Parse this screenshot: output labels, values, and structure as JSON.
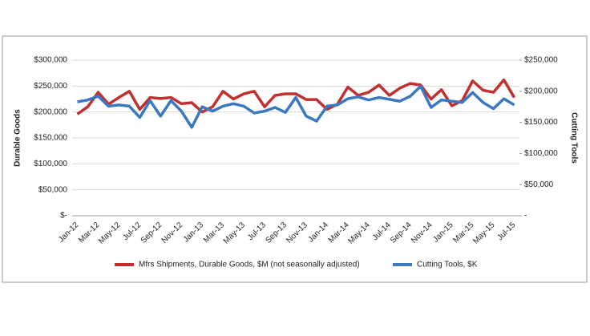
{
  "chart_data": {
    "type": "line",
    "categories": [
      "Jan-12",
      null,
      "Mar-12",
      null,
      "May-12",
      null,
      "Jul-12",
      null,
      "Sep-12",
      null,
      "Nov-12",
      null,
      "Jan-13",
      null,
      "Mar-13",
      null,
      "May-13",
      null,
      "Jul-13",
      null,
      "Sep-13",
      null,
      "Nov-13",
      null,
      "Jan-14",
      null,
      "Mar-14",
      null,
      "May-14",
      null,
      "Jul-14",
      null,
      "Sep-14",
      null,
      "Nov-14",
      null,
      "Jan-15",
      null,
      "Mar-15",
      null,
      "May-15",
      null,
      "Jul-15"
    ],
    "series": [
      {
        "name": "Mfrs Shipments, Durable Goods, $M (not seasonally adjusted)",
        "color": "#c0302e",
        "axis": "y",
        "values": [
          196000,
          210000,
          238000,
          215000,
          228000,
          240000,
          205000,
          228000,
          226000,
          228000,
          216000,
          218000,
          200000,
          210000,
          240000,
          225000,
          235000,
          240000,
          210000,
          232000,
          235000,
          235000,
          224000,
          224000,
          205000,
          215000,
          248000,
          232000,
          238000,
          252000,
          232000,
          246000,
          255000,
          252000,
          225000,
          243000,
          212000,
          222000,
          260000,
          242000,
          238000,
          262000,
          228000
        ]
      },
      {
        "name": "Cutting Tools, $K",
        "color": "#3b78c2",
        "axis": "y2",
        "values": [
          183000,
          186000,
          192000,
          176000,
          178000,
          176000,
          158000,
          185000,
          160000,
          185000,
          168000,
          142000,
          175000,
          168000,
          176000,
          180000,
          176000,
          165000,
          168000,
          174000,
          166000,
          190000,
          160000,
          152000,
          176000,
          178000,
          188000,
          191000,
          186000,
          190000,
          187000,
          184000,
          192000,
          208000,
          174000,
          186000,
          184000,
          182000,
          198000,
          182000,
          172000,
          188000,
          178000
        ]
      }
    ],
    "y_label": "Durable Goods",
    "y2_label": "Cutting Tools",
    "ylim": [
      0,
      300000
    ],
    "yticks": [
      {
        "value": 0,
        "label": "$-"
      },
      {
        "value": 50000,
        "label": "$50,000"
      },
      {
        "value": 100000,
        "label": "$100,000"
      },
      {
        "value": 150000,
        "label": "$150,000"
      },
      {
        "value": 200000,
        "label": "$200,000"
      },
      {
        "value": 250000,
        "label": "$250,000"
      },
      {
        "value": 300000,
        "label": "$300,000"
      }
    ],
    "y2lim": [
      0,
      250000
    ],
    "y2ticks": [
      {
        "value": 0,
        "label": "-"
      },
      {
        "value": 50000,
        "label": "$50,000"
      },
      {
        "value": 100000,
        "label": "$100,000"
      },
      {
        "value": 150000,
        "label": "$150,000"
      },
      {
        "value": 200000,
        "label": "$200,000"
      },
      {
        "value": 250000,
        "label": "$250,000"
      }
    ],
    "grid": true,
    "legend": "bottom"
  }
}
